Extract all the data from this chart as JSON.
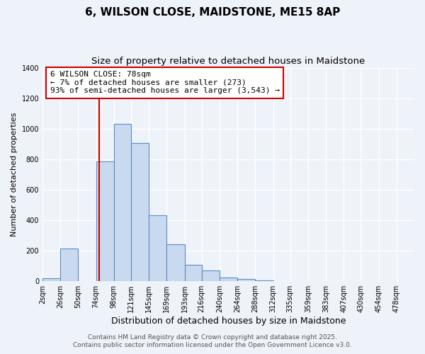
{
  "title": "6, WILSON CLOSE, MAIDSTONE, ME15 8AP",
  "subtitle": "Size of property relative to detached houses in Maidstone",
  "xlabel": "Distribution of detached houses by size in Maidstone",
  "ylabel": "Number of detached properties",
  "bar_left_edges": [
    2,
    26,
    50,
    74,
    98,
    121,
    145,
    169,
    193,
    216,
    240,
    264,
    288,
    312,
    335,
    359,
    383,
    407,
    430,
    454
  ],
  "bar_widths": [
    24,
    24,
    24,
    24,
    23,
    24,
    24,
    24,
    23,
    24,
    24,
    24,
    24,
    23,
    24,
    24,
    24,
    23,
    24,
    24
  ],
  "bar_heights": [
    20,
    215,
    0,
    785,
    1030,
    905,
    435,
    245,
    110,
    70,
    25,
    15,
    5,
    0,
    0,
    0,
    0,
    0,
    0,
    0
  ],
  "bar_color": "#c8d9f0",
  "bar_edgecolor": "#5b8ec4",
  "x_tick_labels": [
    "2sqm",
    "26sqm",
    "50sqm",
    "74sqm",
    "98sqm",
    "121sqm",
    "145sqm",
    "169sqm",
    "193sqm",
    "216sqm",
    "240sqm",
    "264sqm",
    "288sqm",
    "312sqm",
    "335sqm",
    "359sqm",
    "383sqm",
    "407sqm",
    "430sqm",
    "454sqm",
    "478sqm"
  ],
  "x_tick_positions": [
    2,
    26,
    50,
    74,
    98,
    121,
    145,
    169,
    193,
    216,
    240,
    264,
    288,
    312,
    335,
    359,
    383,
    407,
    430,
    454,
    478
  ],
  "ylim": [
    0,
    1400
  ],
  "xlim": [
    2,
    502
  ],
  "yticks": [
    0,
    200,
    400,
    600,
    800,
    1000,
    1200,
    1400
  ],
  "property_x": 78,
  "property_label": "6 WILSON CLOSE: 78sqm",
  "annotation_line1": "← 7% of detached houses are smaller (273)",
  "annotation_line2": "93% of semi-detached houses are larger (3,543) →",
  "vline_color": "#cc0000",
  "annotation_box_color": "#ffffff",
  "annotation_box_edgecolor": "#cc0000",
  "footer_line1": "Contains HM Land Registry data © Crown copyright and database right 2025.",
  "footer_line2": "Contains public sector information licensed under the Open Government Licence v3.0.",
  "background_color": "#eef2f9",
  "grid_color": "#ffffff",
  "title_fontsize": 11,
  "subtitle_fontsize": 9.5,
  "xlabel_fontsize": 9,
  "ylabel_fontsize": 8,
  "tick_fontsize": 7,
  "annotation_fontsize": 8,
  "footer_fontsize": 6.5
}
